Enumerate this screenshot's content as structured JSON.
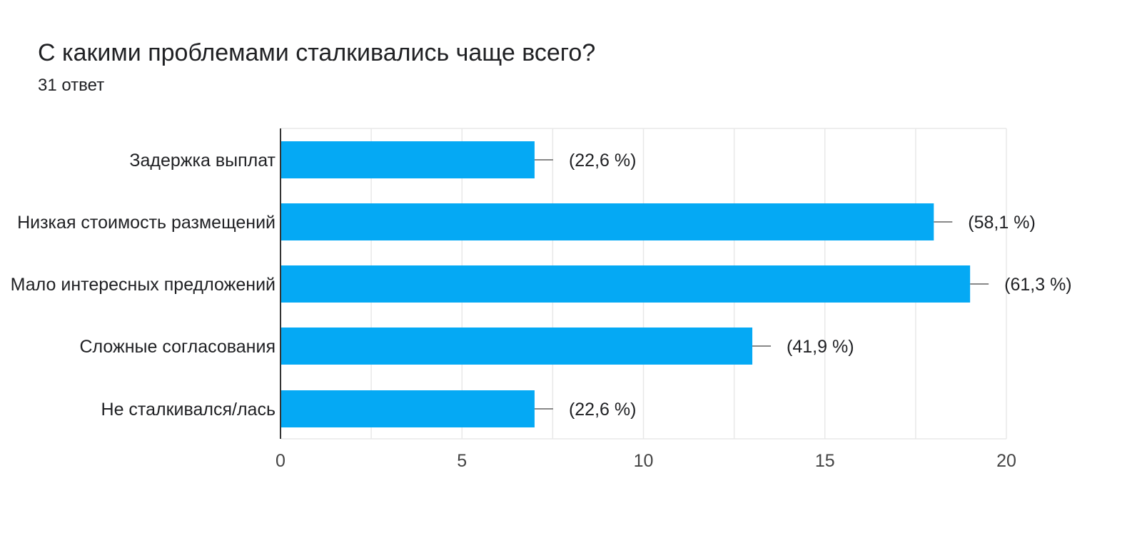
{
  "header": {
    "title": "С какими проблемами сталкивались чаще всего?",
    "subtitle": "31 ответ"
  },
  "colors": {
    "bar": "#05a9f4",
    "grid": "#e8e8e8",
    "axis": "#333333",
    "errorbar": "#888888"
  },
  "chart_data": {
    "type": "bar",
    "orientation": "horizontal",
    "title": "С какими проблемами сталкивались чаще всего?",
    "subtitle": "31 ответ",
    "categories": [
      "Задержка выплат",
      "Низкая стоимость размещений",
      "Мало интересных предложений",
      "Сложные согласования",
      "Не сталкивался/лась"
    ],
    "values": [
      7,
      18,
      19,
      13,
      7
    ],
    "data_labels": [
      "(22,6 %)",
      "(58,1 %)",
      "(61,3 %)",
      "(41,9 %)",
      "(22,6 %)"
    ],
    "xlim": [
      0,
      20
    ],
    "xticks": [
      0,
      5,
      10,
      15,
      20
    ],
    "tick_labels": [
      "0",
      "5",
      "10",
      "15",
      "20"
    ],
    "grid": true,
    "legend": "none"
  }
}
